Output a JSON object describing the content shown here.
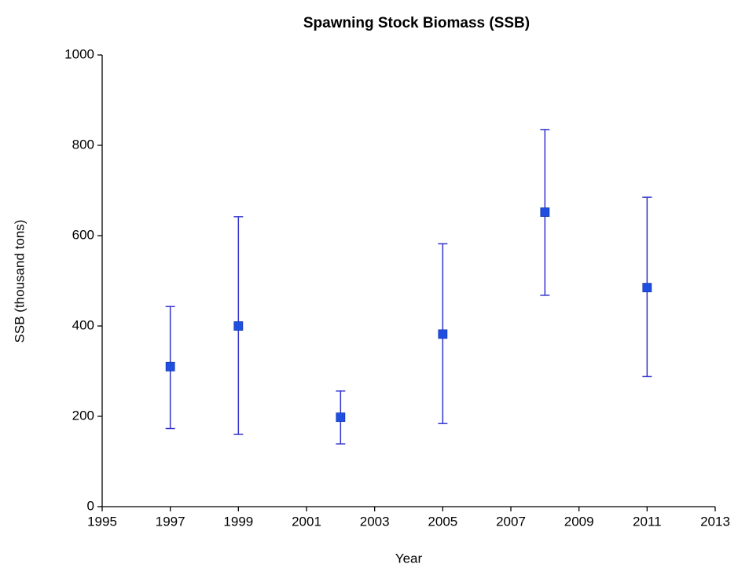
{
  "chart_data": {
    "type": "errorbar",
    "title": "Spawning Stock Biomass (SSB)",
    "x_label": "Year",
    "y_label": "SSB (thousand tons)",
    "x": [
      1997,
      1999,
      2002,
      2005,
      2008,
      2011
    ],
    "values": [
      310,
      400,
      198,
      382,
      652,
      485
    ],
    "lower": [
      173,
      160,
      139,
      184,
      468,
      288
    ],
    "upper": [
      443,
      642,
      256,
      582,
      835,
      685
    ],
    "color": "#1f4fe0",
    "error_color": "#3333cc",
    "xlim": [
      1995,
      2013
    ],
    "xticks": [
      1995,
      1997,
      1999,
      2001,
      2003,
      2005,
      2007,
      2009,
      2011,
      2013
    ],
    "ylim": [
      0,
      1000
    ],
    "yticks": [
      0,
      200,
      400,
      600,
      800,
      1000
    ],
    "grid": false
  }
}
